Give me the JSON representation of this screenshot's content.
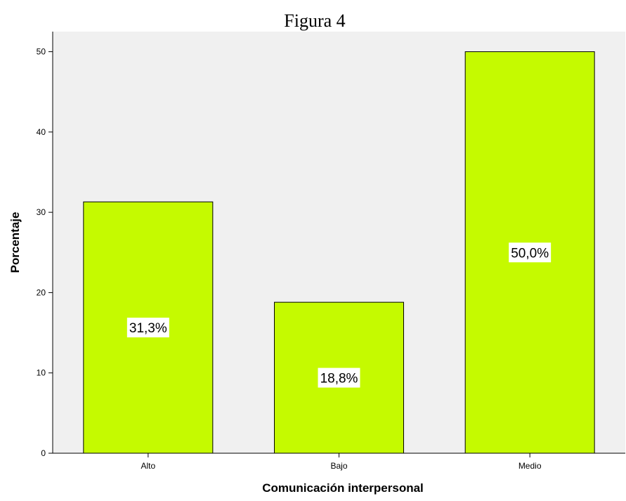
{
  "chart_data": {
    "type": "bar",
    "title": "Figura 4",
    "xlabel": "Comunicación interpersonal",
    "ylabel": "Porcentaje",
    "categories": [
      "Alto",
      "Bajo",
      "Medio"
    ],
    "values": [
      31.3,
      18.8,
      50.0
    ],
    "data_labels": [
      "31,3%",
      "18,8%",
      "50,0%"
    ],
    "ylim": [
      0,
      52.5
    ],
    "yticks": [
      0,
      10,
      20,
      30,
      40,
      50
    ],
    "ytick_labels": [
      "0",
      "10",
      "20",
      "30",
      "40",
      "50"
    ],
    "grid": false,
    "legend": "none",
    "colors": {
      "bar_fill": "#C5FA00",
      "bar_stroke": "#000000",
      "plot_background": "#F0F0F0",
      "axis": "#000000",
      "label_box": "#FFFFFF"
    }
  }
}
